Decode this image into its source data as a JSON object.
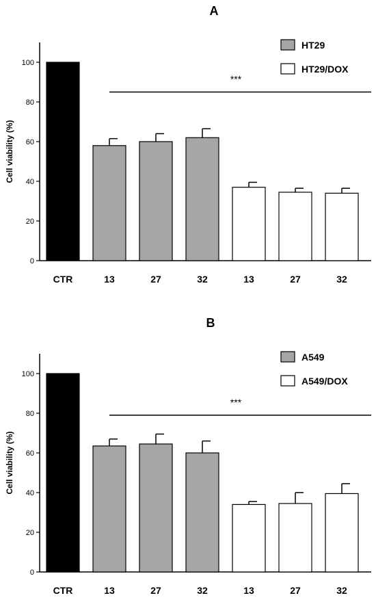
{
  "chart_data": [
    {
      "type": "bar",
      "title": "A",
      "ylabel": "Cell viability (%)",
      "ylim": [
        0,
        110
      ],
      "yticks": [
        0,
        20,
        40,
        60,
        80,
        100
      ],
      "categories": [
        "CTR",
        "13",
        "27",
        "32",
        "13",
        "27",
        "32"
      ],
      "values": [
        100,
        58,
        60,
        62,
        37,
        34.5,
        34
      ],
      "errors": [
        0,
        3.5,
        4,
        4.5,
        2.5,
        2,
        2.5
      ],
      "bar_groups": [
        "control",
        "series1",
        "series1",
        "series1",
        "series2",
        "series2",
        "series2"
      ],
      "colors": {
        "control": "#000000",
        "series1": "#a6a6a6",
        "series2": "#ffffff"
      },
      "legend": [
        {
          "name": "HT29",
          "color": "#a6a6a6"
        },
        {
          "name": "HT29/DOX",
          "color": "#ffffff"
        }
      ],
      "legend_position": "top-right",
      "significance": {
        "label": "***",
        "y": 85
      },
      "grid": false
    },
    {
      "type": "bar",
      "title": "B",
      "ylabel": "Cell viability (%)",
      "ylim": [
        0,
        110
      ],
      "yticks": [
        0,
        20,
        40,
        60,
        80,
        100
      ],
      "categories": [
        "CTR",
        "13",
        "27",
        "32",
        "13",
        "27",
        "32"
      ],
      "values": [
        100,
        63.5,
        64.5,
        60,
        34,
        34.5,
        39.5
      ],
      "errors": [
        0,
        3.5,
        5,
        6,
        1.5,
        5.5,
        5
      ],
      "bar_groups": [
        "control",
        "series1",
        "series1",
        "series1",
        "series2",
        "series2",
        "series2"
      ],
      "colors": {
        "control": "#000000",
        "series1": "#a6a6a6",
        "series2": "#ffffff"
      },
      "legend": [
        {
          "name": "A549",
          "color": "#a6a6a6"
        },
        {
          "name": "A549/DOX",
          "color": "#ffffff"
        }
      ],
      "legend_position": "top-right",
      "significance": {
        "label": "***",
        "y": 79
      },
      "grid": false
    }
  ]
}
